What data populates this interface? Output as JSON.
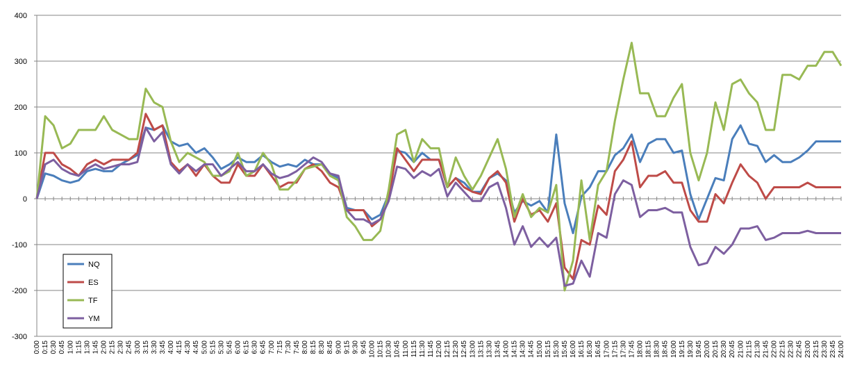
{
  "chart_data": {
    "type": "line",
    "categories": [
      "0:00",
      "0:15",
      "0:30",
      "0:45",
      "1:00",
      "1:15",
      "1:30",
      "1:45",
      "2:00",
      "2:15",
      "2:30",
      "2:45",
      "3:00",
      "3:15",
      "3:30",
      "3:45",
      "4:00",
      "4:15",
      "4:30",
      "4:45",
      "5:00",
      "5:15",
      "5:30",
      "5:45",
      "6:00",
      "6:15",
      "6:30",
      "6:45",
      "7:00",
      "7:15",
      "7:30",
      "7:45",
      "8:00",
      "8:15",
      "8:30",
      "8:45",
      "9:00",
      "9:15",
      "9:30",
      "9:45",
      "10:00",
      "10:15",
      "10:30",
      "10:45",
      "11:00",
      "11:15",
      "11:30",
      "11:45",
      "12:00",
      "12:15",
      "12:30",
      "12:45",
      "13:00",
      "13:15",
      "13:30",
      "13:45",
      "14:00",
      "14:15",
      "14:30",
      "14:45",
      "15:00",
      "15:15",
      "15:30",
      "15:45",
      "16:00",
      "16:15",
      "16:30",
      "16:45",
      "17:00",
      "17:15",
      "17:30",
      "17:45",
      "18:00",
      "18:15",
      "18:30",
      "18:45",
      "19:00",
      "19:15",
      "19:30",
      "19:45",
      "20:00",
      "20:15",
      "20:30",
      "20:45",
      "21:00",
      "21:15",
      "21:30",
      "21:45",
      "22:00",
      "22:15",
      "22:30",
      "22:45",
      "23:00",
      "23:15",
      "23:30",
      "23:45",
      "24:00"
    ],
    "series": [
      {
        "name": "NQ",
        "color": "#4a7ebb",
        "values": [
          0,
          55,
          50,
          40,
          35,
          40,
          60,
          65,
          60,
          60,
          75,
          85,
          95,
          155,
          150,
          160,
          125,
          115,
          120,
          100,
          110,
          90,
          65,
          75,
          90,
          80,
          80,
          95,
          80,
          70,
          75,
          70,
          85,
          75,
          75,
          55,
          45,
          -20,
          -25,
          -25,
          -45,
          -35,
          10,
          105,
          100,
          80,
          100,
          85,
          85,
          25,
          45,
          35,
          15,
          15,
          45,
          55,
          40,
          -30,
          -5,
          -15,
          -5,
          -30,
          140,
          -10,
          -75,
          5,
          25,
          60,
          60,
          95,
          110,
          140,
          80,
          120,
          130,
          130,
          100,
          105,
          10,
          -45,
          0,
          45,
          40,
          130,
          160,
          120,
          115,
          80,
          95,
          80,
          80,
          90,
          105,
          125,
          125,
          125,
          125
        ]
      },
      {
        "name": "ES",
        "color": "#be4b48",
        "values": [
          0,
          100,
          100,
          75,
          65,
          50,
          75,
          85,
          75,
          85,
          85,
          85,
          100,
          185,
          150,
          160,
          80,
          60,
          75,
          50,
          75,
          50,
          35,
          35,
          75,
          50,
          50,
          75,
          50,
          25,
          35,
          35,
          65,
          75,
          60,
          35,
          25,
          -25,
          -25,
          -25,
          -60,
          -45,
          0,
          110,
          85,
          60,
          85,
          85,
          85,
          25,
          45,
          25,
          15,
          10,
          45,
          60,
          35,
          -50,
          0,
          -35,
          -25,
          -50,
          -10,
          -150,
          -175,
          -90,
          -100,
          -15,
          -35,
          60,
          85,
          125,
          25,
          50,
          50,
          60,
          35,
          35,
          -25,
          -50,
          -50,
          10,
          -10,
          35,
          75,
          50,
          35,
          0,
          25,
          25,
          25,
          25,
          35,
          25,
          25,
          25,
          25
        ]
      },
      {
        "name": "TF",
        "color": "#98b954",
        "values": [
          0,
          180,
          160,
          110,
          120,
          150,
          150,
          150,
          180,
          150,
          140,
          130,
          130,
          240,
          210,
          200,
          125,
          80,
          100,
          90,
          80,
          50,
          50,
          60,
          100,
          50,
          60,
          100,
          75,
          20,
          20,
          40,
          65,
          70,
          75,
          50,
          40,
          -40,
          -60,
          -90,
          -90,
          -70,
          20,
          140,
          150,
          80,
          130,
          110,
          110,
          25,
          90,
          50,
          20,
          50,
          90,
          130,
          65,
          -40,
          10,
          -40,
          -20,
          -30,
          30,
          -200,
          -135,
          40,
          -90,
          30,
          60,
          170,
          260,
          340,
          230,
          230,
          180,
          180,
          220,
          250,
          100,
          40,
          100,
          210,
          150,
          250,
          260,
          230,
          210,
          150,
          150,
          270,
          270,
          260,
          290,
          290,
          320,
          320,
          290
        ]
      },
      {
        "name": "YM",
        "color": "#7d5fa0",
        "values": [
          0,
          75,
          85,
          65,
          55,
          50,
          65,
          75,
          65,
          70,
          75,
          75,
          80,
          155,
          125,
          145,
          75,
          55,
          75,
          60,
          75,
          75,
          50,
          65,
          80,
          60,
          60,
          75,
          55,
          45,
          50,
          60,
          75,
          90,
          80,
          55,
          50,
          -25,
          -45,
          -45,
          -55,
          -45,
          -5,
          70,
          65,
          45,
          60,
          50,
          65,
          5,
          35,
          15,
          -5,
          -5,
          25,
          35,
          -20,
          -100,
          -60,
          -105,
          -85,
          -105,
          -85,
          -190,
          -185,
          -135,
          -170,
          -75,
          -85,
          10,
          40,
          30,
          -40,
          -25,
          -25,
          -20,
          -30,
          -30,
          -105,
          -145,
          -140,
          -105,
          -120,
          -100,
          -65,
          -65,
          -60,
          -90,
          -85,
          -75,
          -75,
          -75,
          -70,
          -75,
          -75,
          -75,
          -75
        ]
      }
    ],
    "ylim": [
      -300,
      400
    ],
    "yticks": [
      -300,
      -200,
      -100,
      0,
      100,
      200,
      300,
      400
    ],
    "grid": true,
    "legend": "lower-left"
  }
}
